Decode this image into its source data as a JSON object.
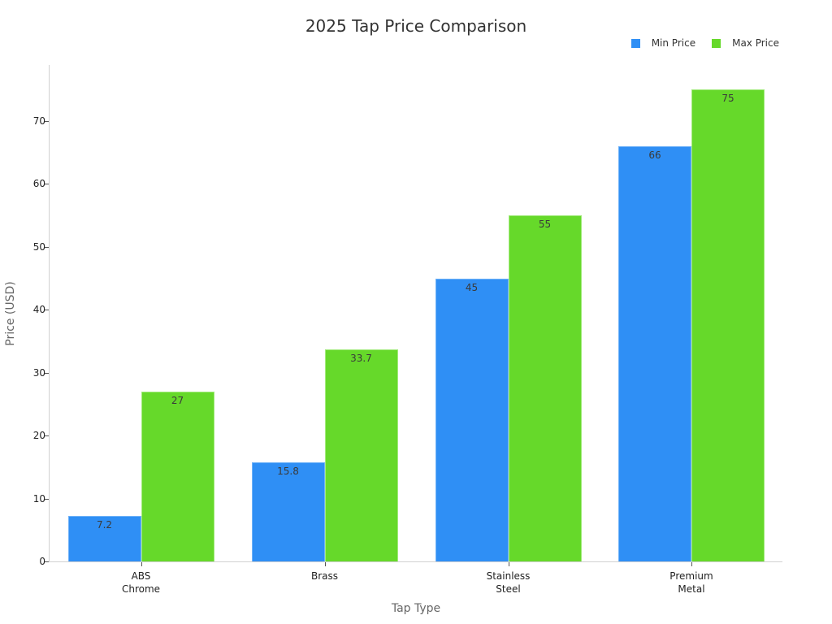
{
  "chart_data": {
    "type": "bar",
    "title": "2025 Tap Price Comparison",
    "xlabel": "Tap Type",
    "ylabel": "Price (USD)",
    "categories": [
      "ABS\nChrome",
      "Brass",
      "Stainless\nSteel",
      "Premium\nMetal"
    ],
    "category_lines": [
      [
        "ABS",
        "Chrome"
      ],
      [
        "Brass"
      ],
      [
        "Stainless",
        "Steel"
      ],
      [
        "Premium",
        "Metal"
      ]
    ],
    "series": [
      {
        "name": "Min Price",
        "color": "#2f8ff5",
        "values": [
          7.2,
          15.8,
          45,
          66
        ],
        "labels": [
          "7.2",
          "15.8",
          "45",
          "66"
        ]
      },
      {
        "name": "Max Price",
        "color": "#66d92a",
        "values": [
          27,
          33.7,
          55,
          75
        ],
        "labels": [
          "27",
          "33.7",
          "55",
          "75"
        ]
      }
    ],
    "yticks": [
      0,
      10,
      20,
      30,
      40,
      50,
      60,
      70
    ],
    "ylim": [
      0,
      79
    ],
    "grid": false,
    "legend_position": "top-right"
  }
}
